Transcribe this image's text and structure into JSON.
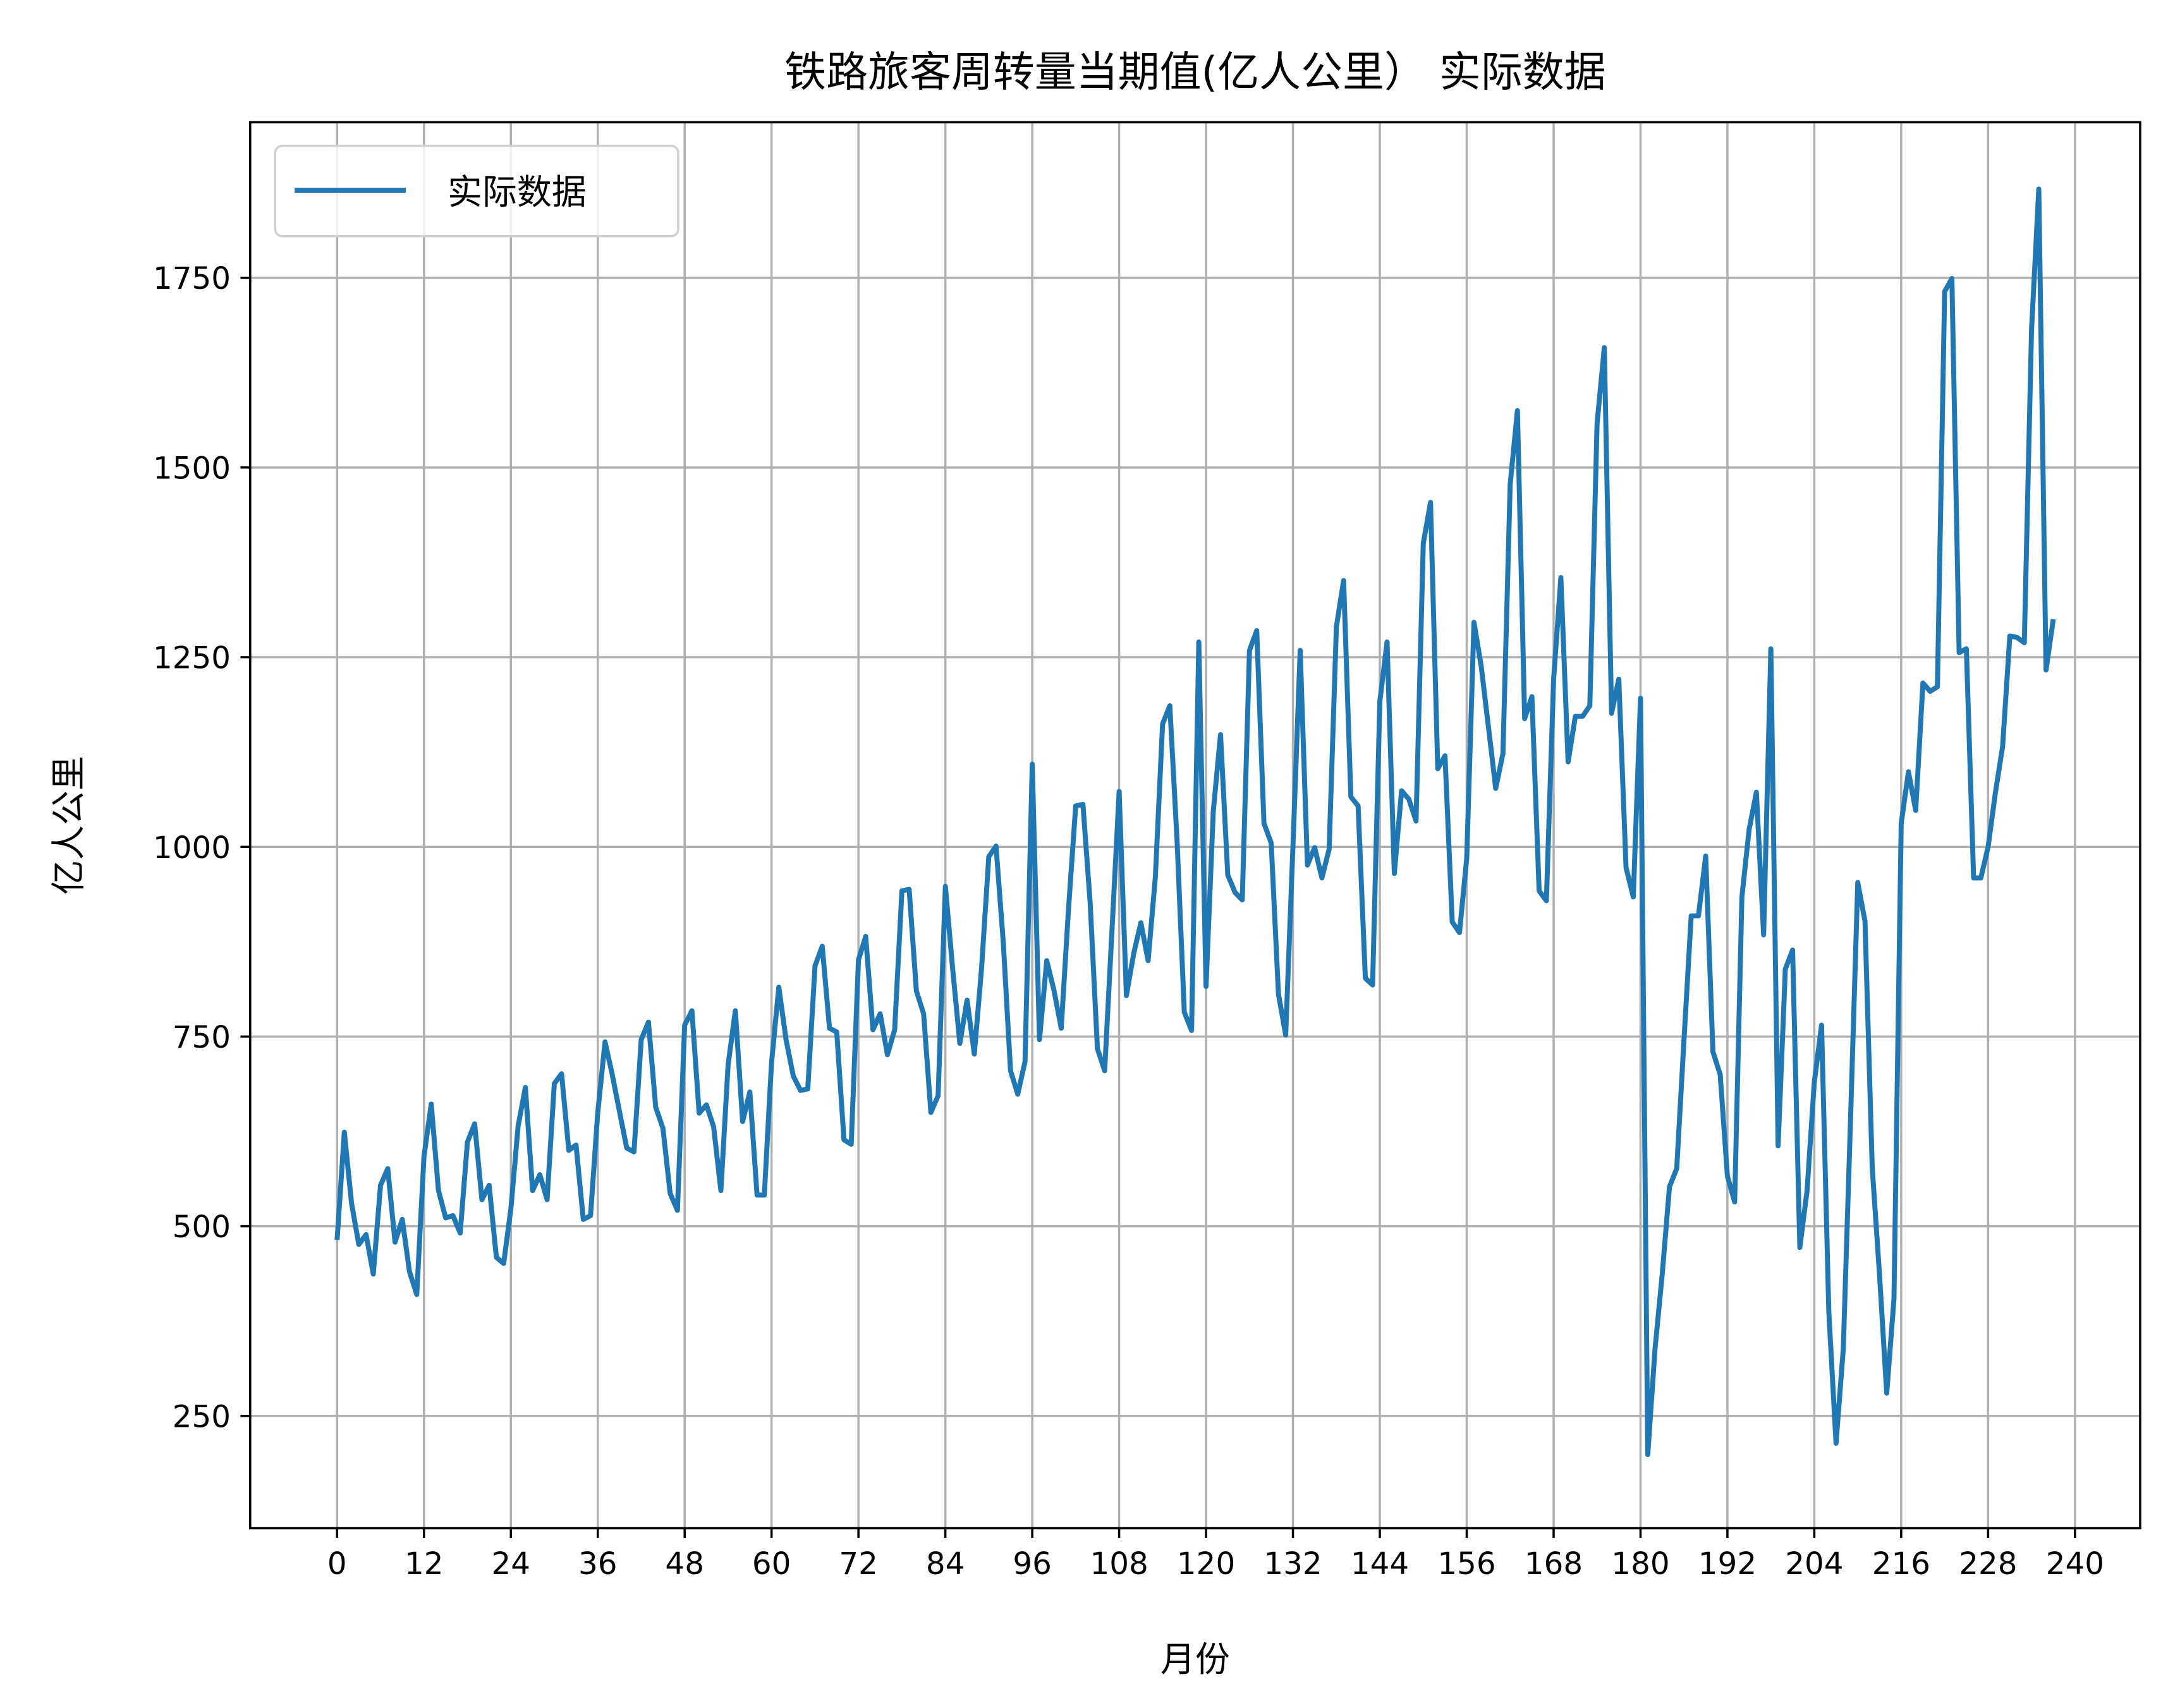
{
  "chart_data": {
    "type": "line",
    "title": "铁路旅客周转量当期值(亿人公里） 实际数据",
    "xlabel": "月份",
    "ylabel": "亿人公里",
    "xlim": [
      -12,
      249
    ],
    "ylim": [
      102,
      1955
    ],
    "grid": true,
    "legend_placement": "top-left",
    "xticks": [
      "0",
      "12",
      "24",
      "36",
      "48",
      "60",
      "72",
      "84",
      "96",
      "108",
      "120",
      "132",
      "144",
      "156",
      "168",
      "180",
      "192",
      "204",
      "216",
      "228",
      "240"
    ],
    "yticks": [
      "250",
      "500",
      "750",
      "1000",
      "1250",
      "1500",
      "1750"
    ],
    "series": [
      {
        "name": "实际数据",
        "color": "#1f77b4",
        "values": [
          482,
          624,
          530,
          476,
          489,
          437,
          554,
          576,
          479,
          509,
          440,
          410,
          592,
          661,
          547,
          511,
          514,
          491,
          611,
          635,
          535,
          554,
          459,
          451,
          523,
          632,
          683,
          547,
          568,
          535,
          688,
          701,
          600,
          607,
          509,
          514,
          650,
          743,
          700,
          651,
          603,
          598,
          746,
          769,
          657,
          629,
          543,
          521,
          765,
          784,
          649,
          660,
          631,
          547,
          713,
          784,
          638,
          677,
          541,
          541,
          716,
          815,
          746,
          698,
          679,
          681,
          843,
          869,
          761,
          756,
          614,
          608,
          851,
          882,
          759,
          780,
          726,
          759,
          942,
          944,
          810,
          780,
          650,
          672,
          948,
          840,
          741,
          798,
          727,
          840,
          987,
          1001,
          874,
          705,
          674,
          717,
          1109,
          746,
          850,
          811,
          761,
          917,
          1054,
          1056,
          926,
          734,
          705,
          888,
          1073,
          804,
          859,
          900,
          850,
          960,
          1162,
          1186,
          1008,
          782,
          758,
          1270,
          816,
          1047,
          1148,
          963,
          940,
          930,
          1259,
          1285,
          1031,
          1005,
          806,
          752,
          1000,
          1259,
          976,
          999,
          959,
          997,
          1290,
          1351,
          1066,
          1054,
          827,
          818,
          1192,
          1270,
          965,
          1074,
          1063,
          1034,
          1400,
          1454,
          1103,
          1120,
          901,
          887,
          985,
          1296,
          1238,
          1158,
          1077,
          1123,
          1478,
          1575,
          1169,
          1198,
          942,
          929,
          1221,
          1355,
          1112,
          1172,
          1172,
          1186,
          1558,
          1658,
          1176,
          1221,
          973,
          934,
          1196,
          199,
          338,
          437,
          552,
          576,
          745,
          909,
          909,
          988,
          730,
          700,
          566,
          532,
          934,
          1023,
          1072,
          884,
          1261,
          606,
          839,
          864,
          472,
          547,
          690,
          765,
          388,
          214,
          338,
          640,
          953,
          902,
          577,
          437,
          280,
          404,
          1031,
          1099,
          1048,
          1216,
          1205,
          1211,
          1732,
          1749,
          1256,
          1261,
          959,
          959,
          1000,
          1071,
          1132,
          1278,
          1276,
          1269,
          1682,
          1867,
          1233,
          1300
        ]
      }
    ]
  }
}
